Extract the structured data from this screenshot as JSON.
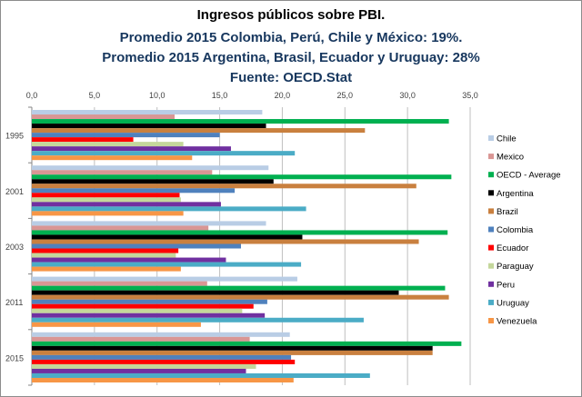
{
  "chart_data": {
    "type": "bar",
    "orientation": "horizontal",
    "title": "Ingresos públicos sobre PBI.",
    "subtitles": [
      "Promedio 2015 Colombia, Perú, Chile y México: 19%.",
      "Promedio 2015 Argentina, Brasil, Ecuador y Uruguay: 28%",
      "Fuente: OECD.Stat"
    ],
    "categories": [
      "1995",
      "2001",
      "2003",
      "2011",
      "2015"
    ],
    "xlim": [
      0,
      35
    ],
    "xticks": [
      "0,0",
      "5,0",
      "10,0",
      "15,0",
      "20,0",
      "25,0",
      "30,0",
      "35,0"
    ],
    "grid": true,
    "legend_position": "right",
    "series": [
      {
        "name": "Chile",
        "color": "#b9cde5",
        "values": [
          18.4,
          18.9,
          18.7,
          21.2,
          20.6
        ]
      },
      {
        "name": "Mexico",
        "color": "#d99694",
        "values": [
          11.4,
          14.4,
          14.1,
          14.0,
          17.4
        ]
      },
      {
        "name": "OECD - Average",
        "color": "#00b050",
        "values": [
          33.3,
          33.5,
          33.2,
          33.0,
          34.3
        ]
      },
      {
        "name": "Argentina",
        "color": "#000000",
        "values": [
          18.7,
          19.3,
          21.6,
          29.3,
          32.0
        ]
      },
      {
        "name": "Brazil",
        "color": "#c9803f",
        "values": [
          26.6,
          30.7,
          30.9,
          33.3,
          32.0
        ]
      },
      {
        "name": "Colombia",
        "color": "#4f81bd",
        "values": [
          15.0,
          16.2,
          16.7,
          18.8,
          20.7
        ]
      },
      {
        "name": "Ecuador",
        "color": "#ff0000",
        "values": [
          8.1,
          11.8,
          11.7,
          17.7,
          21.0
        ]
      },
      {
        "name": "Paraguay",
        "color": "#c4d79b",
        "values": [
          12.1,
          11.9,
          11.5,
          16.8,
          17.9
        ]
      },
      {
        "name": "Peru",
        "color": "#7030a0",
        "values": [
          15.9,
          15.1,
          15.5,
          18.6,
          17.1
        ]
      },
      {
        "name": "Uruguay",
        "color": "#4bacc6",
        "values": [
          21.0,
          21.9,
          21.5,
          26.5,
          27.0
        ]
      },
      {
        "name": "Venezuela",
        "color": "#f79646",
        "values": [
          12.8,
          12.1,
          11.9,
          13.5,
          20.9
        ]
      }
    ]
  }
}
